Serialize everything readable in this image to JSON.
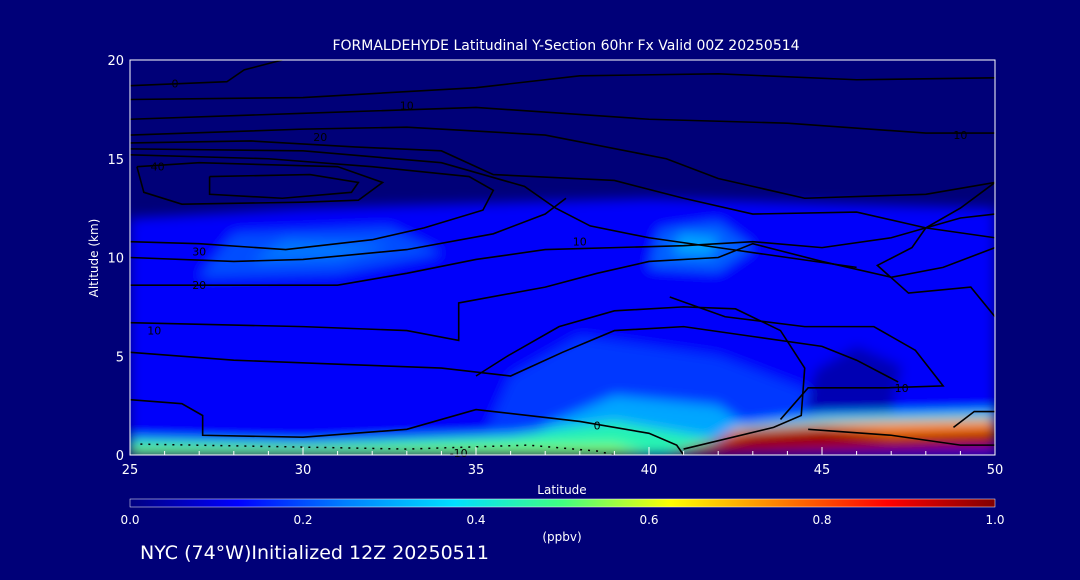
{
  "chart_data": {
    "type": "heatmap",
    "title": "FORMALDEHYDE Latitudinal Y-Section 60hr  Fx Valid 00Z 20250514",
    "xlabel": "Latitude",
    "ylabel": "Altitude (km)",
    "xlim": [
      25,
      50
    ],
    "ylim": [
      0,
      20
    ],
    "xticks": [
      "25",
      "30",
      "35",
      "40",
      "45",
      "50"
    ],
    "yticks": [
      "0",
      "5",
      "10",
      "15",
      "20"
    ],
    "colorbar": {
      "label": "(ppbv)",
      "range": [
        0,
        1
      ],
      "ticks": [
        "0.0",
        "0.2",
        "0.4",
        "0.6",
        "0.8",
        "1.0"
      ],
      "stops": [
        "#000080",
        "#0000ff",
        "#0080ff",
        "#00e0ff",
        "#40ff80",
        "#ffff00",
        "#ff8000",
        "#ff0000",
        "#800000"
      ]
    },
    "fill_regions": [
      {
        "value": 0.12,
        "points": [
          [
            25,
            0
          ],
          [
            50,
            0
          ],
          [
            50,
            12.5
          ],
          [
            40,
            13
          ],
          [
            30,
            12.5
          ],
          [
            25,
            12
          ]
        ]
      },
      {
        "value": 0.2,
        "points": [
          [
            27,
            9
          ],
          [
            31,
            9.2
          ],
          [
            34,
            10.2
          ],
          [
            32.5,
            11.5
          ],
          [
            28,
            11.2
          ]
        ]
      },
      {
        "value": 0.24,
        "points": [
          [
            28.5,
            9.8
          ],
          [
            31,
            9.9
          ],
          [
            32.5,
            10.6
          ],
          [
            29.5,
            10.9
          ]
        ]
      },
      {
        "value": 0.22,
        "points": [
          [
            40,
            9.5
          ],
          [
            42,
            9.3
          ],
          [
            43,
            10.5
          ],
          [
            42,
            11.8
          ],
          [
            40.3,
            11.4
          ]
        ]
      },
      {
        "value": 0.3,
        "points": [
          [
            40.7,
            10.2
          ],
          [
            41.8,
            10.1
          ],
          [
            42,
            11
          ],
          [
            40.9,
            11.2
          ]
        ]
      },
      {
        "value": 0.18,
        "points": [
          [
            35,
            0
          ],
          [
            41,
            0
          ],
          [
            44,
            1
          ],
          [
            45,
            3
          ],
          [
            42,
            5
          ],
          [
            38,
            6
          ],
          [
            36,
            4
          ]
        ]
      },
      {
        "value": 0.3,
        "points": [
          [
            36,
            0
          ],
          [
            41,
            0
          ],
          [
            43,
            1.2
          ],
          [
            42,
            2.5
          ],
          [
            39,
            3
          ],
          [
            37,
            1.5
          ]
        ]
      },
      {
        "value": 0.45,
        "points": [
          [
            25,
            0
          ],
          [
            41,
            0
          ],
          [
            42,
            0.8
          ],
          [
            39,
            1.7
          ],
          [
            36,
            1
          ],
          [
            30,
            0.6
          ],
          [
            25,
            0.8
          ]
        ]
      },
      {
        "value": 0.55,
        "points": [
          [
            25,
            0
          ],
          [
            40,
            0
          ],
          [
            39,
            0.5
          ],
          [
            32,
            0.3
          ],
          [
            25,
            0.3
          ]
        ]
      },
      {
        "value": 0.05,
        "points": [
          [
            44.5,
            2.2
          ],
          [
            47,
            2.2
          ],
          [
            47.3,
            4.5
          ],
          [
            46,
            5.5
          ],
          [
            44.8,
            4.3
          ]
        ]
      },
      {
        "value": 0.4,
        "points": [
          [
            42.5,
            1.2
          ],
          [
            50,
            1.8
          ],
          [
            50,
            2.2
          ],
          [
            45,
            2.0
          ],
          [
            42.5,
            1.5
          ]
        ]
      },
      {
        "value": 0.75,
        "points": [
          [
            41.5,
            0.3
          ],
          [
            50,
            1.0
          ],
          [
            50,
            1.8
          ],
          [
            45,
            1.6
          ],
          [
            42.5,
            1.3
          ]
        ]
      },
      {
        "value": 0.97,
        "points": [
          [
            40.5,
            0
          ],
          [
            50,
            0.3
          ],
          [
            50,
            1.2
          ],
          [
            47,
            1.0
          ],
          [
            45,
            1.4
          ],
          [
            43,
            1.2
          ],
          [
            41.5,
            0.5
          ]
        ]
      }
    ],
    "contours": [
      {
        "label": "0",
        "label_at": [
          26.3,
          18.8
        ],
        "points": [
          [
            25,
            18.7
          ],
          [
            27.8,
            18.9
          ],
          [
            28.3,
            19.5
          ],
          [
            29.4,
            20
          ]
        ]
      },
      {
        "label": "",
        "points": [
          [
            25,
            18.0
          ],
          [
            30,
            18.1
          ],
          [
            35,
            18.6
          ],
          [
            38,
            19.2
          ],
          [
            42,
            19.3
          ],
          [
            46,
            19.0
          ],
          [
            50,
            19.1
          ]
        ]
      },
      {
        "label": "10",
        "label_at": [
          33,
          17.7
        ],
        "points": [
          [
            25,
            17.0
          ],
          [
            30,
            17.3
          ],
          [
            35,
            17.6
          ],
          [
            40,
            17.0
          ],
          [
            44,
            16.8
          ],
          [
            48,
            16.3
          ],
          [
            50,
            16.3
          ]
        ]
      },
      {
        "label": "10",
        "label_at": [
          49,
          16.2
        ],
        "points": []
      },
      {
        "label": "",
        "points": [
          [
            25,
            16.2
          ],
          [
            30,
            16.5
          ],
          [
            33,
            16.6
          ],
          [
            37,
            16.2
          ],
          [
            40.5,
            15.0
          ],
          [
            42,
            14.0
          ],
          [
            43,
            13.6
          ],
          [
            44.5,
            13.0
          ],
          [
            48,
            13.2
          ],
          [
            50,
            13.8
          ]
        ]
      },
      {
        "label": "20",
        "label_at": [
          30.5,
          16.1
        ],
        "points": [
          [
            25,
            15.8
          ],
          [
            28.5,
            15.9
          ],
          [
            31.5,
            15.6
          ],
          [
            34,
            15.4
          ],
          [
            35.5,
            14.2
          ],
          [
            39,
            13.9
          ],
          [
            41,
            13.0
          ],
          [
            43,
            12.2
          ],
          [
            46,
            12.3
          ],
          [
            48,
            11.5
          ],
          [
            50,
            11.0
          ]
        ]
      },
      {
        "label": "",
        "points": [
          [
            25,
            15.5
          ],
          [
            30,
            15.4
          ],
          [
            34,
            14.8
          ],
          [
            36.4,
            13.6
          ],
          [
            37.3,
            12.5
          ],
          [
            38.3,
            11.6
          ],
          [
            40,
            11.0
          ],
          [
            42,
            10.5
          ],
          [
            44,
            10.0
          ],
          [
            46,
            9.5
          ]
        ]
      },
      {
        "label": "",
        "points": [
          [
            25,
            15.2
          ],
          [
            29,
            15.0
          ],
          [
            32,
            14.6
          ],
          [
            34.8,
            14.1
          ],
          [
            35.5,
            13.4
          ],
          [
            35.2,
            12.4
          ],
          [
            33.5,
            11.5
          ],
          [
            32,
            10.9
          ],
          [
            29.5,
            10.4
          ],
          [
            27,
            10.7
          ],
          [
            25,
            10.8
          ]
        ]
      },
      {
        "label": "40",
        "label_at": [
          25.8,
          14.6
        ],
        "points": [
          [
            25.2,
            14.6
          ],
          [
            25.4,
            13.3
          ],
          [
            26.5,
            12.7
          ],
          [
            30,
            12.8
          ],
          [
            31.6,
            12.9
          ],
          [
            32.3,
            13.8
          ],
          [
            31,
            14.6
          ],
          [
            27,
            14.8
          ],
          [
            25.2,
            14.6
          ]
        ]
      },
      {
        "label": "",
        "points": [
          [
            27.3,
            14.1
          ],
          [
            27.3,
            13.2
          ],
          [
            29.4,
            13.0
          ],
          [
            31.4,
            13.3
          ],
          [
            31.6,
            13.8
          ],
          [
            30.2,
            14.2
          ],
          [
            27.3,
            14.1
          ]
        ]
      },
      {
        "label": "30",
        "label_at": [
          27,
          10.3
        ],
        "points": [
          [
            25,
            10.0
          ],
          [
            28,
            9.8
          ],
          [
            30,
            9.9
          ],
          [
            33,
            10.4
          ],
          [
            35.5,
            11.2
          ],
          [
            37,
            12.2
          ],
          [
            37.6,
            13.0
          ]
        ]
      },
      {
        "label": "20",
        "label_at": [
          27,
          8.6
        ],
        "points": [
          [
            25,
            8.6
          ],
          [
            28,
            8.6
          ],
          [
            31,
            8.6
          ],
          [
            33,
            9.2
          ],
          [
            35,
            9.9
          ],
          [
            37,
            10.4
          ],
          [
            39,
            10.5
          ],
          [
            41,
            10.6
          ],
          [
            43,
            10.8
          ],
          [
            45,
            10.5
          ],
          [
            47,
            11.0
          ],
          [
            49,
            12.0
          ],
          [
            50,
            12.2
          ]
        ]
      },
      {
        "label": "10",
        "label_at": [
          38,
          10.8
        ],
        "points": [
          [
            25,
            6.7
          ],
          [
            30,
            6.5
          ],
          [
            33,
            6.3
          ],
          [
            34.5,
            5.8
          ],
          [
            34.5,
            7.7
          ],
          [
            37,
            8.5
          ],
          [
            38.5,
            9.2
          ],
          [
            40,
            9.8
          ],
          [
            42,
            10.0
          ],
          [
            43,
            10.7
          ],
          [
            45,
            9.8
          ],
          [
            47,
            9.0
          ],
          [
            48.5,
            9.5
          ],
          [
            50,
            10.5
          ]
        ]
      },
      {
        "label": "10",
        "label_at": [
          25.7,
          6.3
        ],
        "points": []
      },
      {
        "label": "",
        "points": [
          [
            25,
            5.2
          ],
          [
            28,
            4.8
          ],
          [
            31,
            4.6
          ],
          [
            34,
            4.4
          ],
          [
            36,
            4.0
          ],
          [
            37.5,
            5.2
          ],
          [
            39,
            6.3
          ],
          [
            41,
            6.5
          ],
          [
            43,
            6.0
          ],
          [
            45,
            5.5
          ],
          [
            46,
            4.8
          ],
          [
            47.2,
            3.7
          ]
        ]
      },
      {
        "label": "0",
        "label_at": [
          38.5,
          1.5
        ],
        "points": [
          [
            25,
            2.8
          ],
          [
            26.5,
            2.6
          ],
          [
            27.1,
            2.0
          ],
          [
            27.1,
            1.0
          ],
          [
            30,
            0.9
          ],
          [
            33,
            1.3
          ],
          [
            35,
            2.3
          ],
          [
            38,
            1.7
          ],
          [
            40,
            1.1
          ],
          [
            40.8,
            0.5
          ],
          [
            41,
            0
          ]
        ]
      },
      {
        "label": "",
        "points": [
          [
            41,
            0.3
          ],
          [
            43.6,
            1.4
          ],
          [
            44.4,
            2.0
          ],
          [
            44.5,
            4.4
          ],
          [
            43.8,
            6.3
          ],
          [
            42.5,
            7.4
          ],
          [
            41,
            7.5
          ],
          [
            39,
            7.3
          ],
          [
            37.4,
            6.5
          ],
          [
            35.9,
            5.0
          ],
          [
            35,
            4.0
          ]
        ]
      },
      {
        "label": "10",
        "label_at": [
          47.3,
          3.4
        ],
        "points": [
          [
            43.8,
            1.8
          ],
          [
            44.6,
            3.4
          ],
          [
            46.8,
            3.4
          ],
          [
            48.5,
            3.5
          ],
          [
            47.7,
            5.3
          ],
          [
            46.5,
            6.5
          ],
          [
            44.5,
            6.5
          ],
          [
            42.2,
            7.0
          ],
          [
            40.6,
            8.0
          ]
        ]
      },
      {
        "label": "",
        "points": [
          [
            44.6,
            1.3
          ],
          [
            47,
            1.0
          ],
          [
            49,
            0.5
          ],
          [
            50,
            0.5
          ]
        ]
      },
      {
        "label": "",
        "points": [
          [
            48.8,
            1.4
          ],
          [
            49.4,
            2.2
          ],
          [
            50,
            2.2
          ]
        ]
      },
      {
        "label": "",
        "points": [
          [
            50,
            13.8
          ],
          [
            49,
            12.5
          ],
          [
            48,
            11.5
          ],
          [
            47.6,
            10.5
          ],
          [
            46.6,
            9.6
          ],
          [
            47.5,
            8.2
          ],
          [
            49.3,
            8.5
          ],
          [
            50,
            7.0
          ]
        ]
      }
    ],
    "dotted_contours": [
      {
        "label": "-10",
        "label_at": [
          34.5,
          0.1
        ],
        "points": [
          [
            25.3,
            0.55
          ],
          [
            30,
            0.4
          ],
          [
            33,
            0.3
          ],
          [
            36.5,
            0.5
          ],
          [
            38.5,
            0.2
          ],
          [
            39,
            0
          ]
        ]
      }
    ]
  },
  "footer": {
    "location": "NYC (74°W)Initialized 12Z 20250511"
  }
}
